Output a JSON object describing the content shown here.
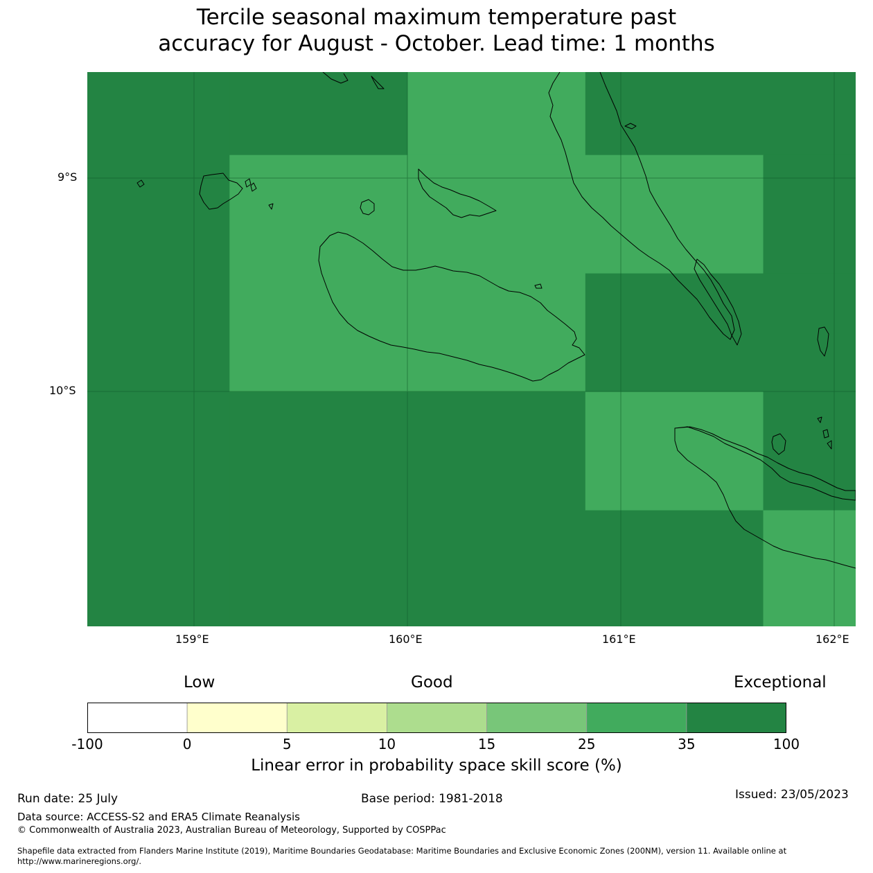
{
  "title": {
    "line1": "Tercile seasonal maximum temperature past",
    "line2": "accuracy for August - October. Lead time: 1 months"
  },
  "map": {
    "lon_range": [
      158.5,
      162.1
    ],
    "lat_range": [
      -11.1,
      -8.5
    ],
    "lat_labels": [
      "9°S",
      "10°S"
    ],
    "lon_labels": [
      "159°E",
      "160°E",
      "161°E",
      "162°E"
    ],
    "grid_cells": [
      {
        "lon": [
          158.5,
          159.1666
        ],
        "lat": [
          -11.1,
          -8.5
        ],
        "class": "35 to 100"
      },
      {
        "lon": [
          159.1666,
          160.0
        ],
        "lat": [
          -8.8889,
          -8.5
        ],
        "class": "35 to 100"
      },
      {
        "lon": [
          160.0,
          160.8333
        ],
        "lat": [
          -8.8889,
          -8.5
        ],
        "class": "25 to 35"
      },
      {
        "lon": [
          160.8333,
          162.1
        ],
        "lat": [
          -8.8889,
          -8.5
        ],
        "class": "35 to 100"
      },
      {
        "lon": [
          159.1666,
          160.8333
        ],
        "lat": [
          -10.0,
          -8.8889
        ],
        "class": "25 to 35"
      },
      {
        "lon": [
          160.8333,
          161.6666
        ],
        "lat": [
          -9.4444,
          -8.8889
        ],
        "class": "25 to 35"
      },
      {
        "lon": [
          161.6666,
          162.1
        ],
        "lat": [
          -9.4444,
          -8.8889
        ],
        "class": "35 to 100"
      },
      {
        "lon": [
          160.8333,
          162.1
        ],
        "lat": [
          -10.0,
          -9.4444
        ],
        "class": "35 to 100"
      },
      {
        "lon": [
          159.1666,
          160.8333
        ],
        "lat": [
          -11.1,
          -10.0
        ],
        "class": "35 to 100"
      },
      {
        "lon": [
          160.8333,
          161.6666
        ],
        "lat": [
          -10.5555,
          -10.0
        ],
        "class": "25 to 35"
      },
      {
        "lon": [
          161.6666,
          162.1
        ],
        "lat": [
          -10.5555,
          -10.0
        ],
        "class": "35 to 100"
      },
      {
        "lon": [
          160.8333,
          161.6666
        ],
        "lat": [
          -11.1,
          -10.5555
        ],
        "class": "35 to 100"
      },
      {
        "lon": [
          161.6666,
          162.1
        ],
        "lat": [
          -11.1,
          -10.5555
        ],
        "class": "25 to 35"
      }
    ]
  },
  "colorbar": {
    "category_labels": {
      "low": "Low",
      "good": "Good",
      "exceptional": "Exceptional"
    },
    "bins": [
      {
        "range": "-100 to 0",
        "color": "#ffffff"
      },
      {
        "range": "0 to 5",
        "color": "#ffffcc"
      },
      {
        "range": "5 to 10",
        "color": "#d9f0a3"
      },
      {
        "range": "10 to 15",
        "color": "#addd8e"
      },
      {
        "range": "15 to 25",
        "color": "#78c679"
      },
      {
        "range": "25 to 35",
        "color": "#41ab5d"
      },
      {
        "range": "35 to 100",
        "color": "#238443"
      }
    ],
    "ticks": [
      "-100",
      "0",
      "5",
      "10",
      "15",
      "25",
      "35",
      "100"
    ],
    "label": "Linear error in probability space skill score (%)"
  },
  "footer": {
    "run_date": "Run date: 25 July",
    "base_period": "Base period: 1981-2018",
    "issued": "Issued: 23/05/2023",
    "data_source": "Data source: ACCESS-S2 and ERA5 Climate Reanalysis",
    "copyright": "© Commonwealth of Australia 2023, Australian Bureau of Meteorology, Supported by COSPPac",
    "shapefile_line1": "Shapefile data extracted from Flanders Marine Institute (2019), Maritime Boundaries Geodatabase: Maritime Boundaries and Exclusive Economic Zones (200NM), version 11. Available online at",
    "shapefile_line2": "http://www.marineregions.org/."
  }
}
